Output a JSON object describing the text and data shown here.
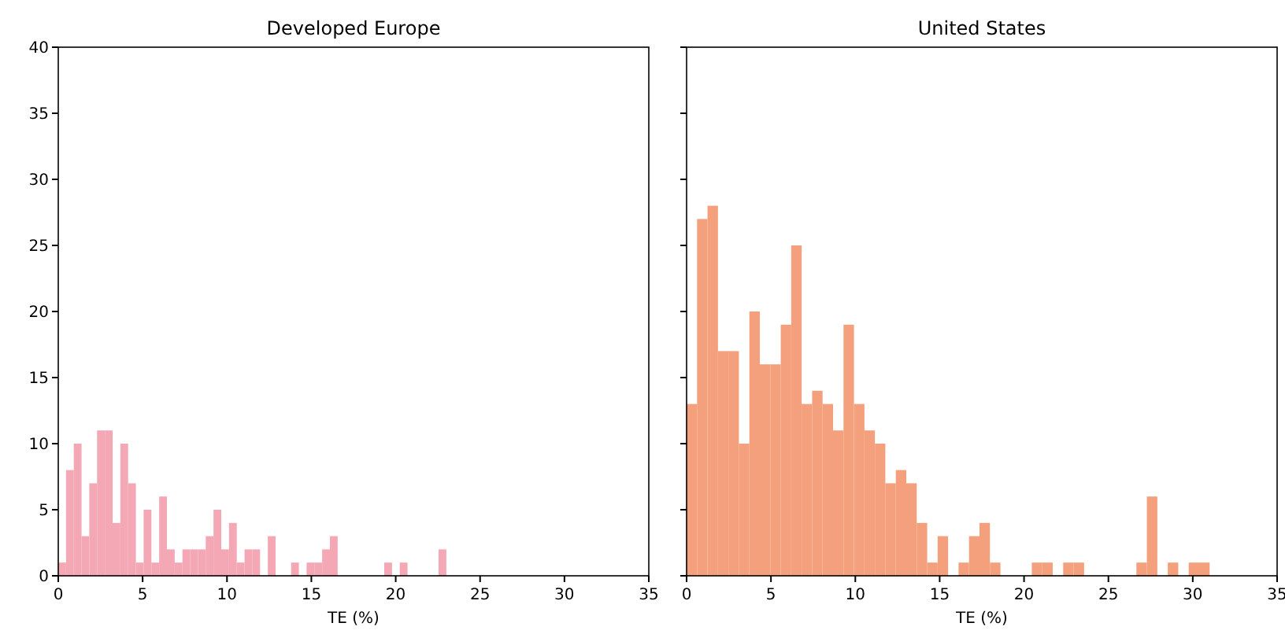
{
  "chart_data": [
    {
      "type": "histogram",
      "title": "Developed Europe",
      "xlabel": "TE (%)",
      "color": "#f4a7b4",
      "bins": [
        0,
        0.46,
        0.92,
        1.38,
        1.84,
        2.3,
        2.76,
        3.22,
        3.68,
        4.14,
        4.6,
        5.06,
        5.52,
        5.98,
        6.44,
        6.9,
        7.36,
        7.82,
        8.28,
        8.74,
        9.2,
        9.66,
        10.12,
        10.58,
        11.04,
        11.5,
        11.96,
        12.42,
        12.88,
        13.34,
        13.8,
        14.26,
        14.72,
        15.18,
        15.64,
        16.1,
        16.56,
        17.02,
        17.48,
        17.94,
        18.4,
        18.86,
        19.32,
        19.78,
        20.24,
        20.7,
        21.16,
        21.62,
        22.08,
        22.54,
        23.0
      ],
      "values": [
        1,
        8,
        10,
        3,
        7,
        11,
        11,
        4,
        10,
        7,
        1,
        5,
        1,
        6,
        2,
        1,
        2,
        2,
        2,
        3,
        5,
        2,
        4,
        1,
        2,
        2,
        0,
        3,
        0,
        0,
        1,
        0,
        1,
        1,
        2,
        3,
        0,
        0,
        0,
        0,
        0,
        0,
        1,
        0,
        1,
        0,
        0,
        0,
        0,
        2
      ],
      "xlim": [
        0,
        35
      ],
      "xticks": [
        0,
        5,
        10,
        15,
        20,
        25,
        30,
        35
      ],
      "ylim": [
        0,
        40
      ],
      "yticks": [
        0,
        5,
        10,
        15,
        20,
        25,
        30,
        35,
        40
      ],
      "grid": false
    },
    {
      "type": "histogram",
      "title": "United States",
      "xlabel": "TE (%)",
      "color": "#f4a07c",
      "bins": [
        0,
        0.62,
        1.24,
        1.86,
        2.48,
        3.1,
        3.72,
        4.34,
        4.96,
        5.58,
        6.2,
        6.82,
        7.44,
        8.06,
        8.68,
        9.3,
        9.92,
        10.54,
        11.16,
        11.78,
        12.4,
        13.02,
        13.64,
        14.26,
        14.88,
        15.5,
        16.12,
        16.74,
        17.36,
        17.98,
        18.6,
        19.22,
        19.84,
        20.46,
        21.08,
        21.7,
        22.32,
        22.94,
        23.56,
        24.18,
        24.8,
        25.42,
        26.04,
        26.66,
        27.28,
        27.9,
        28.52,
        29.14,
        29.76,
        30.38,
        31.0
      ],
      "values": [
        13,
        27,
        28,
        17,
        17,
        10,
        20,
        16,
        16,
        19,
        25,
        13,
        14,
        13,
        11,
        19,
        13,
        11,
        10,
        7,
        8,
        7,
        4,
        1,
        3,
        0,
        1,
        3,
        4,
        1,
        0,
        0,
        0,
        1,
        1,
        0,
        1,
        1,
        0,
        0,
        0,
        0,
        0,
        1,
        6,
        0,
        1,
        0,
        1,
        1
      ],
      "xlim": [
        0,
        35
      ],
      "xticks": [
        0,
        5,
        10,
        15,
        20,
        25,
        30,
        35
      ],
      "ylim": [
        0,
        40
      ],
      "yticks": [
        0,
        5,
        10,
        15,
        20,
        25,
        30,
        35,
        40
      ],
      "tick_labels": "x",
      "grid": false
    }
  ]
}
